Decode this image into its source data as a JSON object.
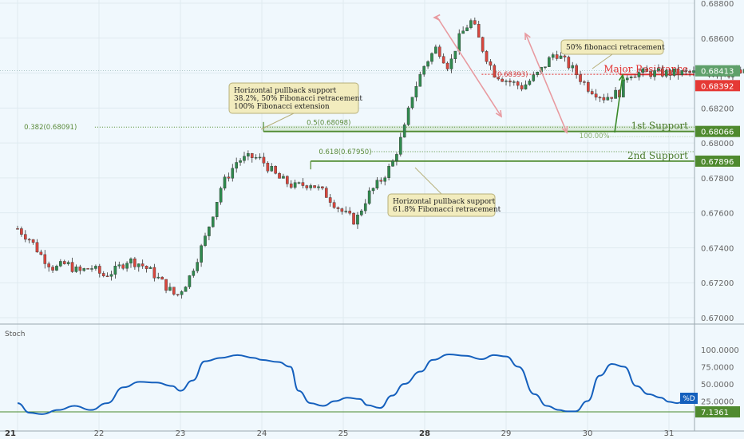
{
  "chart_data": {
    "type": "candlestick",
    "price_axis": {
      "min": 0.67,
      "max": 0.688,
      "ticks": [
        "0.68800",
        "0.68600",
        "0.68400",
        "0.68200",
        "0.68000",
        "0.67800",
        "0.67600",
        "0.67400",
        "0.67200",
        "0.67000"
      ],
      "tick_values": [
        0.688,
        0.686,
        0.684,
        0.682,
        0.68,
        0.678,
        0.676,
        0.674,
        0.672,
        0.67
      ]
    },
    "x_axis": {
      "labels": [
        "21",
        "22",
        "23",
        "24",
        "25",
        "28",
        "29",
        "30",
        "31"
      ],
      "bold": [
        "21",
        "28"
      ],
      "day_min": 21.0,
      "day_max": 31.3
    },
    "close_series": [
      [
        21.0,
        0.6751
      ],
      [
        21.15,
        0.6745
      ],
      [
        21.3,
        0.6735
      ],
      [
        21.45,
        0.6728
      ],
      [
        21.6,
        0.6731
      ],
      [
        21.75,
        0.6726
      ],
      [
        21.9,
        0.6729
      ],
      [
        22.05,
        0.6724
      ],
      [
        22.2,
        0.6727
      ],
      [
        22.35,
        0.6733
      ],
      [
        22.5,
        0.6731
      ],
      [
        22.65,
        0.6726
      ],
      [
        22.8,
        0.6719
      ],
      [
        22.95,
        0.6712
      ],
      [
        23.1,
        0.6722
      ],
      [
        23.3,
        0.6745
      ],
      [
        23.5,
        0.6775
      ],
      [
        23.7,
        0.679
      ],
      [
        23.9,
        0.6792
      ],
      [
        24.0,
        0.679
      ],
      [
        24.2,
        0.678
      ],
      [
        24.4,
        0.6775
      ],
      [
        24.6,
        0.6777
      ],
      [
        24.8,
        0.677
      ],
      [
        25.0,
        0.676
      ],
      [
        25.15,
        0.6755
      ],
      [
        25.3,
        0.677
      ],
      [
        25.45,
        0.6778
      ],
      [
        25.6,
        0.6788
      ],
      [
        25.75,
        0.6808
      ],
      [
        25.85,
        0.6828
      ],
      [
        26.0,
        0.6845
      ],
      [
        26.15,
        0.6855
      ],
      [
        26.3,
        0.6843
      ],
      [
        26.4,
        0.6858
      ],
      [
        26.5,
        0.6866
      ],
      [
        26.58,
        0.687
      ],
      [
        26.7,
        0.6855
      ],
      [
        26.85,
        0.684
      ],
      [
        27.0,
        0.6836
      ],
      [
        27.2,
        0.6832
      ],
      [
        27.4,
        0.684
      ],
      [
        27.6,
        0.6852
      ],
      [
        27.8,
        0.6843
      ],
      [
        28.0,
        0.6832
      ],
      [
        28.2,
        0.6826
      ],
      [
        28.4,
        0.6829
      ],
      [
        28.5,
        0.684
      ]
    ],
    "stoch": {
      "label": "Stoch",
      "series_label": "%D",
      "last_value": "7.1361",
      "axis_ticks": [
        "100.0000",
        "75.0000",
        "50.0000",
        "25.0000"
      ],
      "tick_values": [
        100,
        75,
        50,
        25
      ],
      "points": [
        [
          21.0,
          22
        ],
        [
          21.15,
          8
        ],
        [
          21.3,
          6
        ],
        [
          21.5,
          12
        ],
        [
          21.7,
          18
        ],
        [
          21.9,
          12
        ],
        [
          22.1,
          22
        ],
        [
          22.3,
          45
        ],
        [
          22.5,
          53
        ],
        [
          22.7,
          52
        ],
        [
          22.9,
          47
        ],
        [
          23.0,
          40
        ],
        [
          23.15,
          55
        ],
        [
          23.3,
          83
        ],
        [
          23.5,
          88
        ],
        [
          23.7,
          92
        ],
        [
          23.9,
          88
        ],
        [
          24.0,
          85
        ],
        [
          24.2,
          82
        ],
        [
          24.35,
          75
        ],
        [
          24.45,
          40
        ],
        [
          24.6,
          22
        ],
        [
          24.75,
          18
        ],
        [
          24.9,
          25
        ],
        [
          25.05,
          30
        ],
        [
          25.2,
          28
        ],
        [
          25.3,
          19
        ],
        [
          25.45,
          15
        ],
        [
          25.6,
          33
        ],
        [
          25.75,
          50
        ],
        [
          25.95,
          68
        ],
        [
          26.1,
          85
        ],
        [
          26.3,
          93
        ],
        [
          26.5,
          91
        ],
        [
          26.7,
          86
        ],
        [
          26.85,
          92
        ],
        [
          27.0,
          90
        ],
        [
          27.15,
          75
        ],
        [
          27.35,
          35
        ],
        [
          27.5,
          18
        ],
        [
          27.65,
          12
        ],
        [
          27.75,
          10
        ],
        [
          27.85,
          10
        ],
        [
          28.0,
          25
        ],
        [
          28.15,
          62
        ],
        [
          28.3,
          79
        ],
        [
          28.45,
          75
        ],
        [
          28.6,
          47
        ],
        [
          28.75,
          35
        ],
        [
          28.9,
          30
        ],
        [
          29.0,
          24
        ],
        [
          29.1,
          22
        ],
        [
          29.2,
          25
        ]
      ]
    }
  },
  "levels": {
    "major_resistance": {
      "label": "Major Resistance",
      "price": 0.68392,
      "tag": "0.68392"
    },
    "current_price": {
      "price": 0.68413,
      "tag": "0.68413"
    },
    "support1": {
      "label": "1st Support",
      "price": 0.68066,
      "tag": "0.68066"
    },
    "support2": {
      "label": "2nd Support",
      "price": 0.67896,
      "tag": "0.67896"
    },
    "fib_0382": {
      "text": "0.382(0.68091)",
      "price": 0.68091
    },
    "fib_05": {
      "text": "0.5(0.68098)",
      "price": 0.68098
    },
    "fib_0618": {
      "text": "0.618(0.67950)",
      "price": 0.6795
    },
    "fib_100": {
      "text": "100.00%",
      "price": 0.6805
    },
    "fib_mid": {
      "text": "(0.68393)",
      "price": 0.68393
    }
  },
  "annotations": {
    "note1": {
      "lines": [
        "Horizontal pullback support",
        "38.2%, 50% Fibonacci retracement",
        "100% Fibonacci extension"
      ]
    },
    "note2": {
      "lines": [
        "Horizontal pullback  support",
        "61.8% Fibonacci retracement"
      ]
    },
    "note3": {
      "lines": [
        "50% fibonacci retracement"
      ]
    }
  },
  "colors": {
    "up": "#2f8a4e",
    "down": "#d9463d",
    "support": "#4f8a2f",
    "resistance": "#e33030",
    "stoch": "#1560bd",
    "current": "#5fa06a",
    "note_bg": "#f2ecbe",
    "note_border": "#b7b07a"
  }
}
